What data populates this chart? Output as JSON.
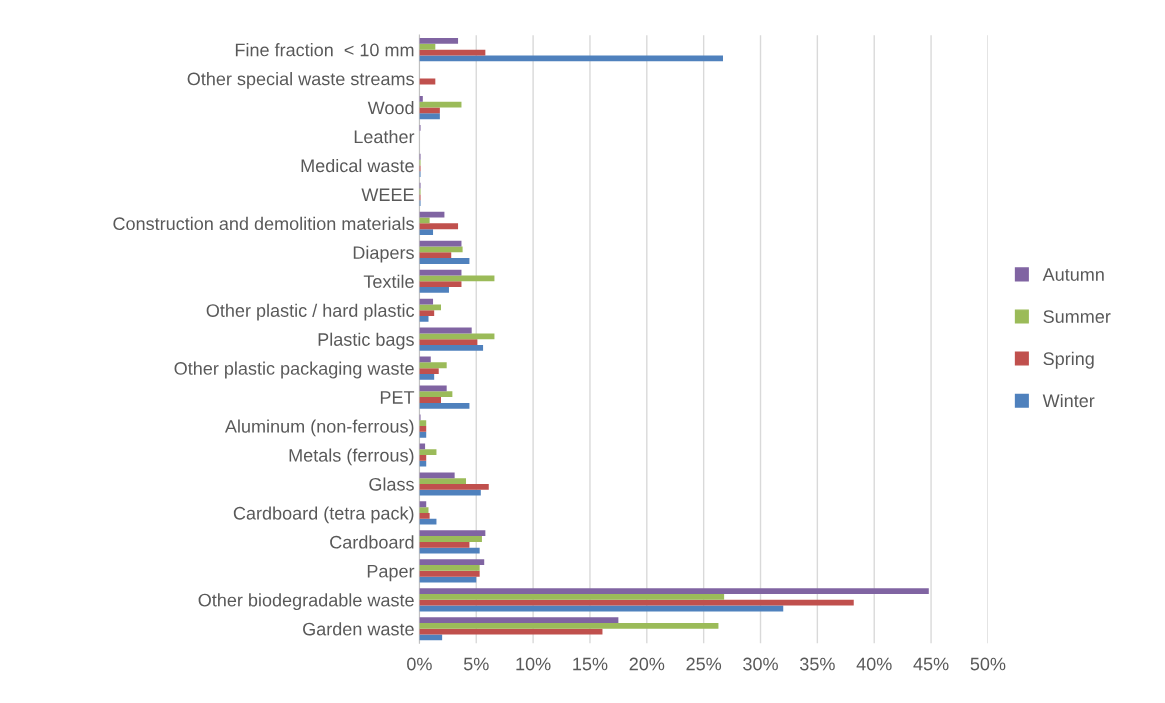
{
  "chart_data": {
    "type": "bar",
    "orientation": "horizontal",
    "categories": [
      "Fine fraction  < 10 mm",
      "Other special waste streams",
      "Wood",
      "Leather",
      "Medical waste",
      "WEEE",
      "Construction and demolition materials",
      "Diapers",
      "Textile",
      "Other plastic / hard plastic",
      "Plastic bags",
      "Other plastic packaging waste",
      "PET",
      "Aluminum (non-ferrous)",
      "Metals (ferrous)",
      "Glass",
      "Cardboard (tetra pack)",
      "Cardboard",
      "Paper",
      "Other biodegradable waste",
      "Garden waste"
    ],
    "series": [
      {
        "name": "Winter",
        "color": "#4f81bd",
        "values": [
          26.7,
          0,
          1.8,
          0,
          0.1,
          0.1,
          1.2,
          4.4,
          2.6,
          0.8,
          5.6,
          1.3,
          4.4,
          0.6,
          0.6,
          5.4,
          1.5,
          5.3,
          5.0,
          32.0,
          2.0
        ]
      },
      {
        "name": "Spring",
        "color": "#c0504d",
        "values": [
          5.8,
          1.4,
          1.8,
          0,
          0.1,
          0.1,
          3.4,
          2.8,
          3.7,
          1.3,
          5.1,
          1.7,
          1.9,
          0.6,
          0.6,
          6.1,
          0.9,
          4.4,
          5.3,
          38.2,
          16.1
        ]
      },
      {
        "name": "Summer",
        "color": "#9bbb59",
        "values": [
          1.4,
          0,
          3.7,
          0,
          0.1,
          0.1,
          0.9,
          3.8,
          6.6,
          1.9,
          6.6,
          2.4,
          2.9,
          0.6,
          1.5,
          4.1,
          0.8,
          5.5,
          5.3,
          26.8,
          26.3
        ]
      },
      {
        "name": "Autumn",
        "color": "#8064a2",
        "values": [
          3.4,
          0,
          0.3,
          0.1,
          0.1,
          0.1,
          2.2,
          3.7,
          3.7,
          1.2,
          4.6,
          1.0,
          2.4,
          0.1,
          0.5,
          3.1,
          0.6,
          5.8,
          5.7,
          44.8,
          17.5
        ]
      }
    ],
    "xlim": [
      0,
      50
    ],
    "xticks": [
      {
        "value": 0,
        "label": "0%"
      },
      {
        "value": 5,
        "label": "5%"
      },
      {
        "value": 10,
        "label": "10%"
      },
      {
        "value": 15,
        "label": "15%"
      },
      {
        "value": 20,
        "label": "20%"
      },
      {
        "value": 25,
        "label": "25%"
      },
      {
        "value": 30,
        "label": "30%"
      },
      {
        "value": 35,
        "label": "35%"
      },
      {
        "value": 40,
        "label": "40%"
      },
      {
        "value": 45,
        "label": "45%"
      },
      {
        "value": 50,
        "label": "50%"
      }
    ],
    "grid": "x",
    "legend": "right"
  }
}
